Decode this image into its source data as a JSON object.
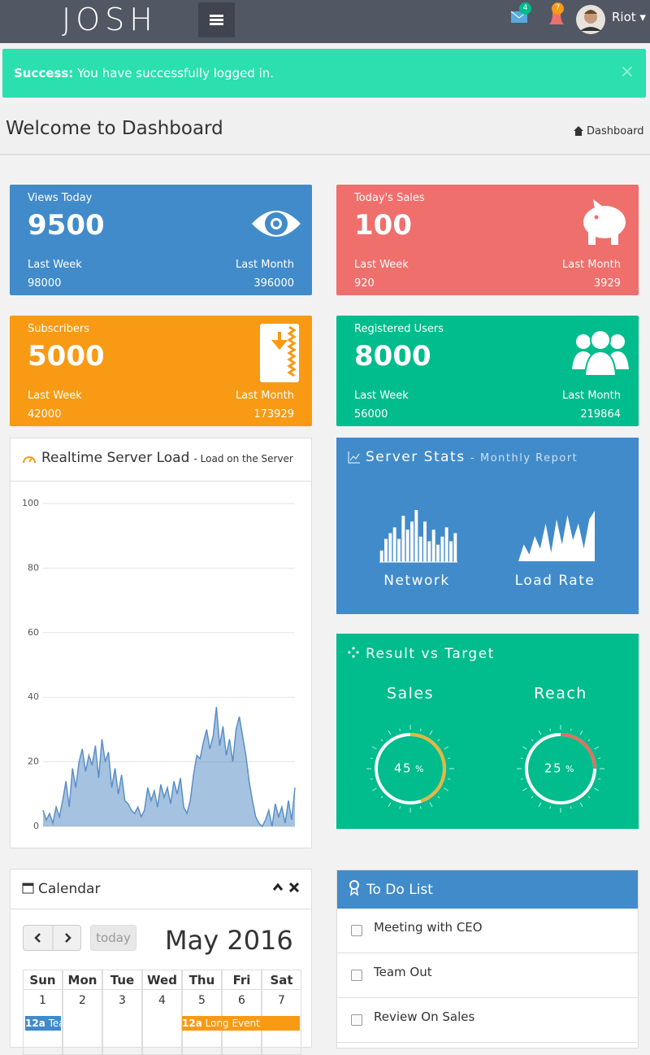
{
  "header": {
    "logo": "JOSH",
    "mail_count": 4,
    "alert_count": 7,
    "user": "Riot"
  },
  "alert": {
    "label": "Success:",
    "message": "You have successfully logged in.",
    "close": "×"
  },
  "page_header": {
    "title": "Welcome to Dashboard",
    "breadcrumb": "Dashboard"
  },
  "stats": [
    {
      "title": "Views Today",
      "value": 9500,
      "week_label": "Last Week",
      "week": 98000,
      "month_label": "Last Month",
      "month": 396000,
      "color": "#418bca"
    },
    {
      "title": "Today's Sales",
      "value": 100,
      "week_label": "Last Week",
      "week": 920,
      "month_label": "Last Month",
      "month": 3929,
      "color": "#ef6f6c"
    },
    {
      "title": "Subscribers",
      "value": 5000,
      "week_label": "Last Week",
      "week": 42000,
      "month_label": "Last Month",
      "month": 173929,
      "color": "#f89a14"
    },
    {
      "title": "Registered Users",
      "value": 8000,
      "week_label": "Last Week",
      "week": 56000,
      "month_label": "Last Month",
      "month": 219864,
      "color": "#01bc8c"
    }
  ],
  "server_load": {
    "title": "Realtime Server Load",
    "subtitle": "- Load on the Server",
    "chart": {
      "type": "area",
      "color": "#5b8fc7",
      "values": [
        5,
        2,
        4,
        1,
        6,
        3,
        8,
        14,
        6,
        18,
        12,
        20,
        24,
        17,
        22,
        19,
        25,
        15,
        27,
        20,
        23,
        12,
        18,
        10,
        16,
        8,
        7,
        5,
        4,
        6,
        3,
        5,
        12,
        8,
        11,
        6,
        13,
        9,
        12,
        7,
        14,
        10,
        15,
        6,
        4,
        8,
        16,
        22,
        21,
        26,
        30,
        24,
        28,
        37,
        25,
        31,
        22,
        27,
        20,
        30,
        34,
        28,
        22,
        14,
        8,
        3,
        1,
        0,
        2,
        5,
        0,
        7,
        3,
        6,
        1,
        8,
        2,
        12
      ],
      "ylim": [
        0,
        100
      ],
      "yticks": [
        0,
        20,
        40,
        60,
        80,
        100
      ],
      "grid": true
    }
  },
  "server_stats": {
    "title": "Server Stats",
    "subtitle": "- Monthly Report",
    "network": {
      "label": "Network",
      "type": "bar",
      "values": [
        10,
        20,
        25,
        30,
        20,
        40,
        28,
        35,
        45,
        22,
        35,
        18,
        28,
        15,
        22,
        30,
        18,
        25
      ]
    },
    "load_rate": {
      "label": "Load Rate",
      "type": "area",
      "values": [
        0,
        20,
        8,
        30,
        15,
        45,
        10,
        50,
        20,
        55,
        25,
        45,
        15,
        50,
        60
      ]
    }
  },
  "result_vs_target": {
    "title": "Result vs Target",
    "gauges": [
      {
        "label": "Sales",
        "value": 45,
        "unit": "%",
        "color": "#e8b640"
      },
      {
        "label": "Reach",
        "value": 25,
        "unit": "%",
        "color": "#e07061"
      }
    ]
  },
  "calendar": {
    "title": "Calendar",
    "today": "today",
    "month": "May 2016",
    "weekdays": [
      "Sun",
      "Mon",
      "Tue",
      "Wed",
      "Thu",
      "Fri",
      "Sat"
    ],
    "dates": [
      1,
      2,
      3,
      4,
      5,
      6,
      7
    ],
    "events": [
      {
        "time": "12a",
        "title": "Tea"
      },
      {
        "time": "12a",
        "title": "Long Event"
      }
    ]
  },
  "todo": {
    "title": "To Do List",
    "items": [
      "Meeting with CEO",
      "Team Out",
      "Review On Sales"
    ]
  }
}
